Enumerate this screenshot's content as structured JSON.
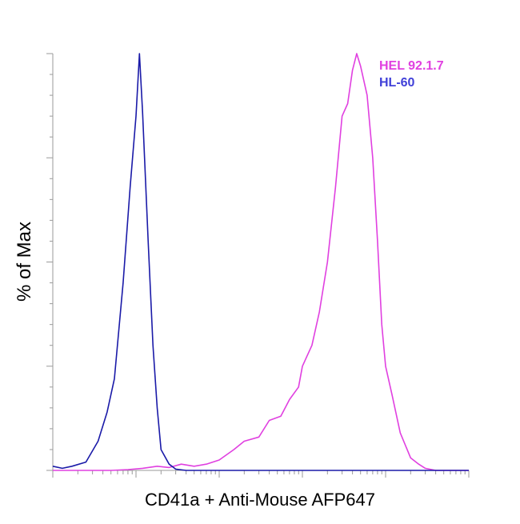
{
  "chart_data": {
    "type": "line",
    "title": "",
    "xlabel": "CD41a + Anti-Mouse AFP647",
    "ylabel": "% of Max",
    "x_scale": "log",
    "xlim": [
      1,
      100000
    ],
    "ylim": [
      0,
      100
    ],
    "grid": false,
    "legend_position": "top-right",
    "series": [
      {
        "name": "HEL 92.1.7",
        "color": "#e040e0",
        "x": [
          1,
          2,
          5,
          8,
          12,
          18,
          25,
          35,
          50,
          70,
          100,
          150,
          200,
          300,
          400,
          550,
          700,
          900,
          1000,
          1300,
          1600,
          2000,
          2500,
          3000,
          3500,
          4000,
          4500,
          5000,
          6000,
          7000,
          8000,
          9000,
          10000,
          12000,
          15000,
          20000,
          25000,
          30000,
          40000,
          60000,
          100000
        ],
        "y": [
          0,
          0,
          0,
          0.2,
          0.5,
          1,
          0.7,
          1.5,
          1,
          1.5,
          2.5,
          5,
          7,
          8,
          12,
          13,
          17,
          20,
          25,
          30,
          38,
          50,
          68,
          85,
          88,
          96,
          100,
          97,
          90,
          75,
          55,
          35,
          25,
          18,
          9,
          3,
          1.5,
          0.5,
          0,
          0,
          0
        ]
      },
      {
        "name": "HL-60",
        "color": "#1a1aa8",
        "x": [
          1,
          1.3,
          1.7,
          2.5,
          3.5,
          4.5,
          5.5,
          7,
          8.5,
          10,
          11,
          12,
          14,
          16,
          18,
          20,
          25,
          30,
          40,
          60,
          100,
          1000,
          10000,
          100000
        ],
        "y": [
          1,
          0.5,
          1,
          2,
          7,
          14,
          22,
          45,
          68,
          85,
          100,
          86,
          55,
          30,
          15,
          5,
          1.5,
          0.3,
          0,
          0,
          0,
          0,
          0,
          0
        ]
      }
    ]
  }
}
